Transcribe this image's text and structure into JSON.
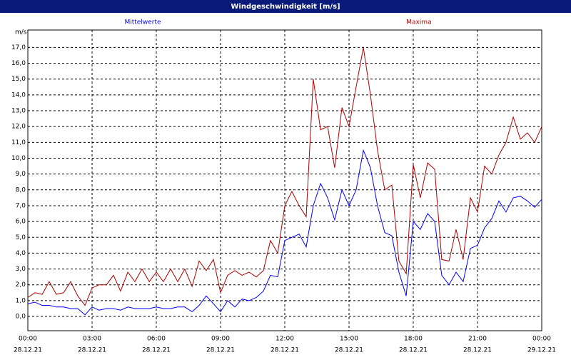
{
  "chart_data": {
    "type": "line",
    "title": "Windgeschwindigkeit [m/s]",
    "y_label": "m/s",
    "x": [
      0,
      0.33,
      0.67,
      1,
      1.33,
      1.67,
      2,
      2.33,
      2.67,
      3,
      3.33,
      3.67,
      4,
      4.33,
      4.67,
      5,
      5.33,
      5.67,
      6,
      6.33,
      6.67,
      7,
      7.33,
      7.67,
      8,
      8.33,
      8.67,
      9,
      9.33,
      9.67,
      10,
      10.33,
      10.67,
      11,
      11.33,
      11.67,
      12,
      12.33,
      12.67,
      13,
      13.33,
      13.67,
      14,
      14.33,
      14.67,
      15,
      15.33,
      15.67,
      16,
      16.33,
      16.67,
      17,
      17.33,
      17.67,
      18,
      18.33,
      18.67,
      19,
      19.33,
      19.67,
      20,
      20.33,
      20.67,
      21,
      21.33,
      21.67,
      22,
      22.33,
      22.67,
      23,
      23.33,
      23.67,
      24
    ],
    "series": [
      {
        "name": "Mittelwerte",
        "color": "#0000ff",
        "values": [
          0.8,
          0.9,
          0.7,
          0.7,
          0.6,
          0.6,
          0.5,
          0.5,
          0.1,
          0.6,
          0.4,
          0.5,
          0.5,
          0.4,
          0.6,
          0.5,
          0.5,
          0.5,
          0.6,
          0.5,
          0.5,
          0.6,
          0.6,
          0.3,
          0.7,
          1.3,
          0.8,
          0.3,
          1.0,
          0.6,
          1.1,
          1.0,
          1.2,
          1.6,
          2.6,
          2.5,
          4.8,
          5.0,
          5.2,
          4.4,
          7.0,
          8.4,
          7.5,
          6.1,
          8.0,
          7.0,
          8.0,
          10.5,
          9.4,
          7.0,
          5.3,
          5.1,
          2.8,
          1.3,
          6.0,
          5.5,
          6.5,
          6.0,
          2.6,
          2.0,
          2.8,
          2.2,
          4.3,
          4.5,
          5.6,
          6.2,
          7.3,
          6.6,
          7.5,
          7.6,
          7.3,
          6.9,
          7.4
        ]
      },
      {
        "name": "Maxima",
        "color": "#b00000",
        "values": [
          1.2,
          1.5,
          1.4,
          2.2,
          1.4,
          1.5,
          2.2,
          1.3,
          0.7,
          1.8,
          2.0,
          2.0,
          2.6,
          1.6,
          2.8,
          2.2,
          3.0,
          2.2,
          2.8,
          2.2,
          3.0,
          2.2,
          3.0,
          1.9,
          3.5,
          2.9,
          3.6,
          1.5,
          2.6,
          2.9,
          2.6,
          2.8,
          2.5,
          2.9,
          4.8,
          4.0,
          7.0,
          7.9,
          7.0,
          6.3,
          15.0,
          11.8,
          12.0,
          9.4,
          13.2,
          12.0,
          14.5,
          17.0,
          14.0,
          10.5,
          8.0,
          8.3,
          3.5,
          2.7,
          9.6,
          7.5,
          9.7,
          9.3,
          3.6,
          3.5,
          5.5,
          3.6,
          7.5,
          6.6,
          9.5,
          9.0,
          10.2,
          11.0,
          12.6,
          11.2,
          11.6,
          11.0,
          12.0
        ]
      }
    ],
    "xlim": [
      0,
      24
    ],
    "xticks": [
      {
        "value": 0,
        "label": "00:00"
      },
      {
        "value": 3,
        "label": "03:00"
      },
      {
        "value": 6,
        "label": "06:00"
      },
      {
        "value": 9,
        "label": "09:00"
      },
      {
        "value": 12,
        "label": "12:00"
      },
      {
        "value": 15,
        "label": "15:00"
      },
      {
        "value": 18,
        "label": "18:00"
      },
      {
        "value": 21,
        "label": "21:00"
      },
      {
        "value": 24,
        "label": "00:00"
      }
    ],
    "xtick_dates": [
      "28.12.21",
      "28.12.21",
      "28.12.21",
      "28.12.21",
      "28.12.21",
      "28.12.21",
      "28.12.21",
      "28.12.21",
      "29.12.21"
    ],
    "ylim": [
      -0.9,
      18.1
    ],
    "yticks": [
      {
        "value": 0,
        "label": "0,0"
      },
      {
        "value": 1,
        "label": "1,0"
      },
      {
        "value": 2,
        "label": "2,0"
      },
      {
        "value": 3,
        "label": "3,0"
      },
      {
        "value": 4,
        "label": "4,0"
      },
      {
        "value": 5,
        "label": "5,0"
      },
      {
        "value": 6,
        "label": "6,0"
      },
      {
        "value": 7,
        "label": "7,0"
      },
      {
        "value": 8,
        "label": "8,0"
      },
      {
        "value": 9,
        "label": "9,0"
      },
      {
        "value": 10,
        "label": "10,0"
      },
      {
        "value": 11,
        "label": "11,0"
      },
      {
        "value": 12,
        "label": "12,0"
      },
      {
        "value": 13,
        "label": "13,0"
      },
      {
        "value": 14,
        "label": "14,0"
      },
      {
        "value": 15,
        "label": "15,0"
      },
      {
        "value": 16,
        "label": "16,0"
      },
      {
        "value": 17,
        "label": "17,0"
      }
    ],
    "grid": true
  }
}
